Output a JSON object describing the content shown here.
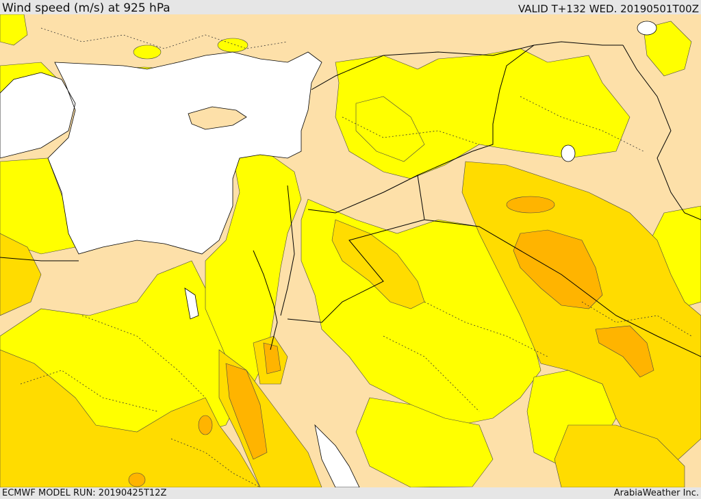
{
  "header": {
    "title": "Wind speed (m/s) at 925 hPa",
    "valid": "VALID T+132 WED. 20190501T00Z"
  },
  "footer": {
    "model_run": "ECMWF MODEL RUN: 20190425T12Z",
    "credit": "ArabiaWeather Inc."
  },
  "colors": {
    "sea": "#ffffff",
    "calm": "#fde0a9",
    "light": "#ffff00",
    "moderate": "#ffdc00",
    "strong": "#ffb400",
    "border": "#000000"
  }
}
